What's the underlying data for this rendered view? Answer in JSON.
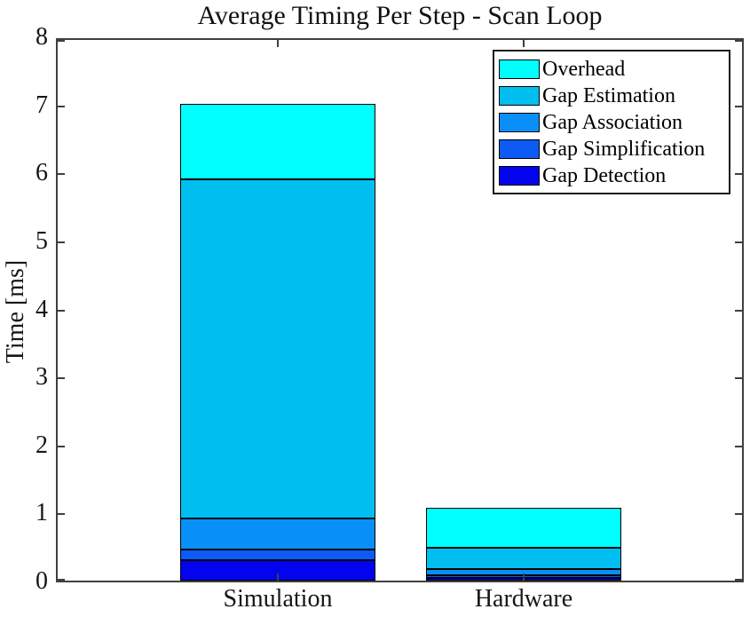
{
  "figure": {
    "kind": "matlab-style-stacked-bar-figure"
  },
  "chart_data": {
    "type": "bar",
    "stacked": true,
    "title": "Average Timing Per Step - Scan Loop",
    "xlabel": "",
    "ylabel": "Time [ms]",
    "categories": [
      "Simulation",
      "Hardware"
    ],
    "series": [
      {
        "name": "Gap Detection",
        "color": "#0303F0",
        "values": [
          0.3,
          0.04
        ]
      },
      {
        "name": "Gap Simplification",
        "color": "#0D5AF5",
        "values": [
          0.16,
          0.04
        ]
      },
      {
        "name": "Gap Association",
        "color": "#0990F8",
        "values": [
          0.45,
          0.09
        ]
      },
      {
        "name": "Gap Estimation",
        "color": "#00BFF0",
        "values": [
          4.99,
          0.31
        ]
      },
      {
        "name": "Overhead",
        "color": "#00FFFF",
        "values": [
          1.11,
          0.59
        ]
      }
    ],
    "stack_totals": [
      7.01,
      1.07
    ],
    "ylim": [
      0,
      8
    ],
    "yticks": [
      0,
      1,
      2,
      3,
      4,
      5,
      6,
      7,
      8
    ],
    "grid": false,
    "legend": {
      "position": "northeast",
      "entries_top_to_bottom": [
        "Overhead",
        "Gap Estimation",
        "Gap Association",
        "Gap Simplification",
        "Gap Detection"
      ]
    }
  },
  "colors": {
    "axis_line": "#3f3f3f",
    "tick_text": "#161616",
    "background": "#ffffff",
    "segment_edge": "#000000"
  }
}
